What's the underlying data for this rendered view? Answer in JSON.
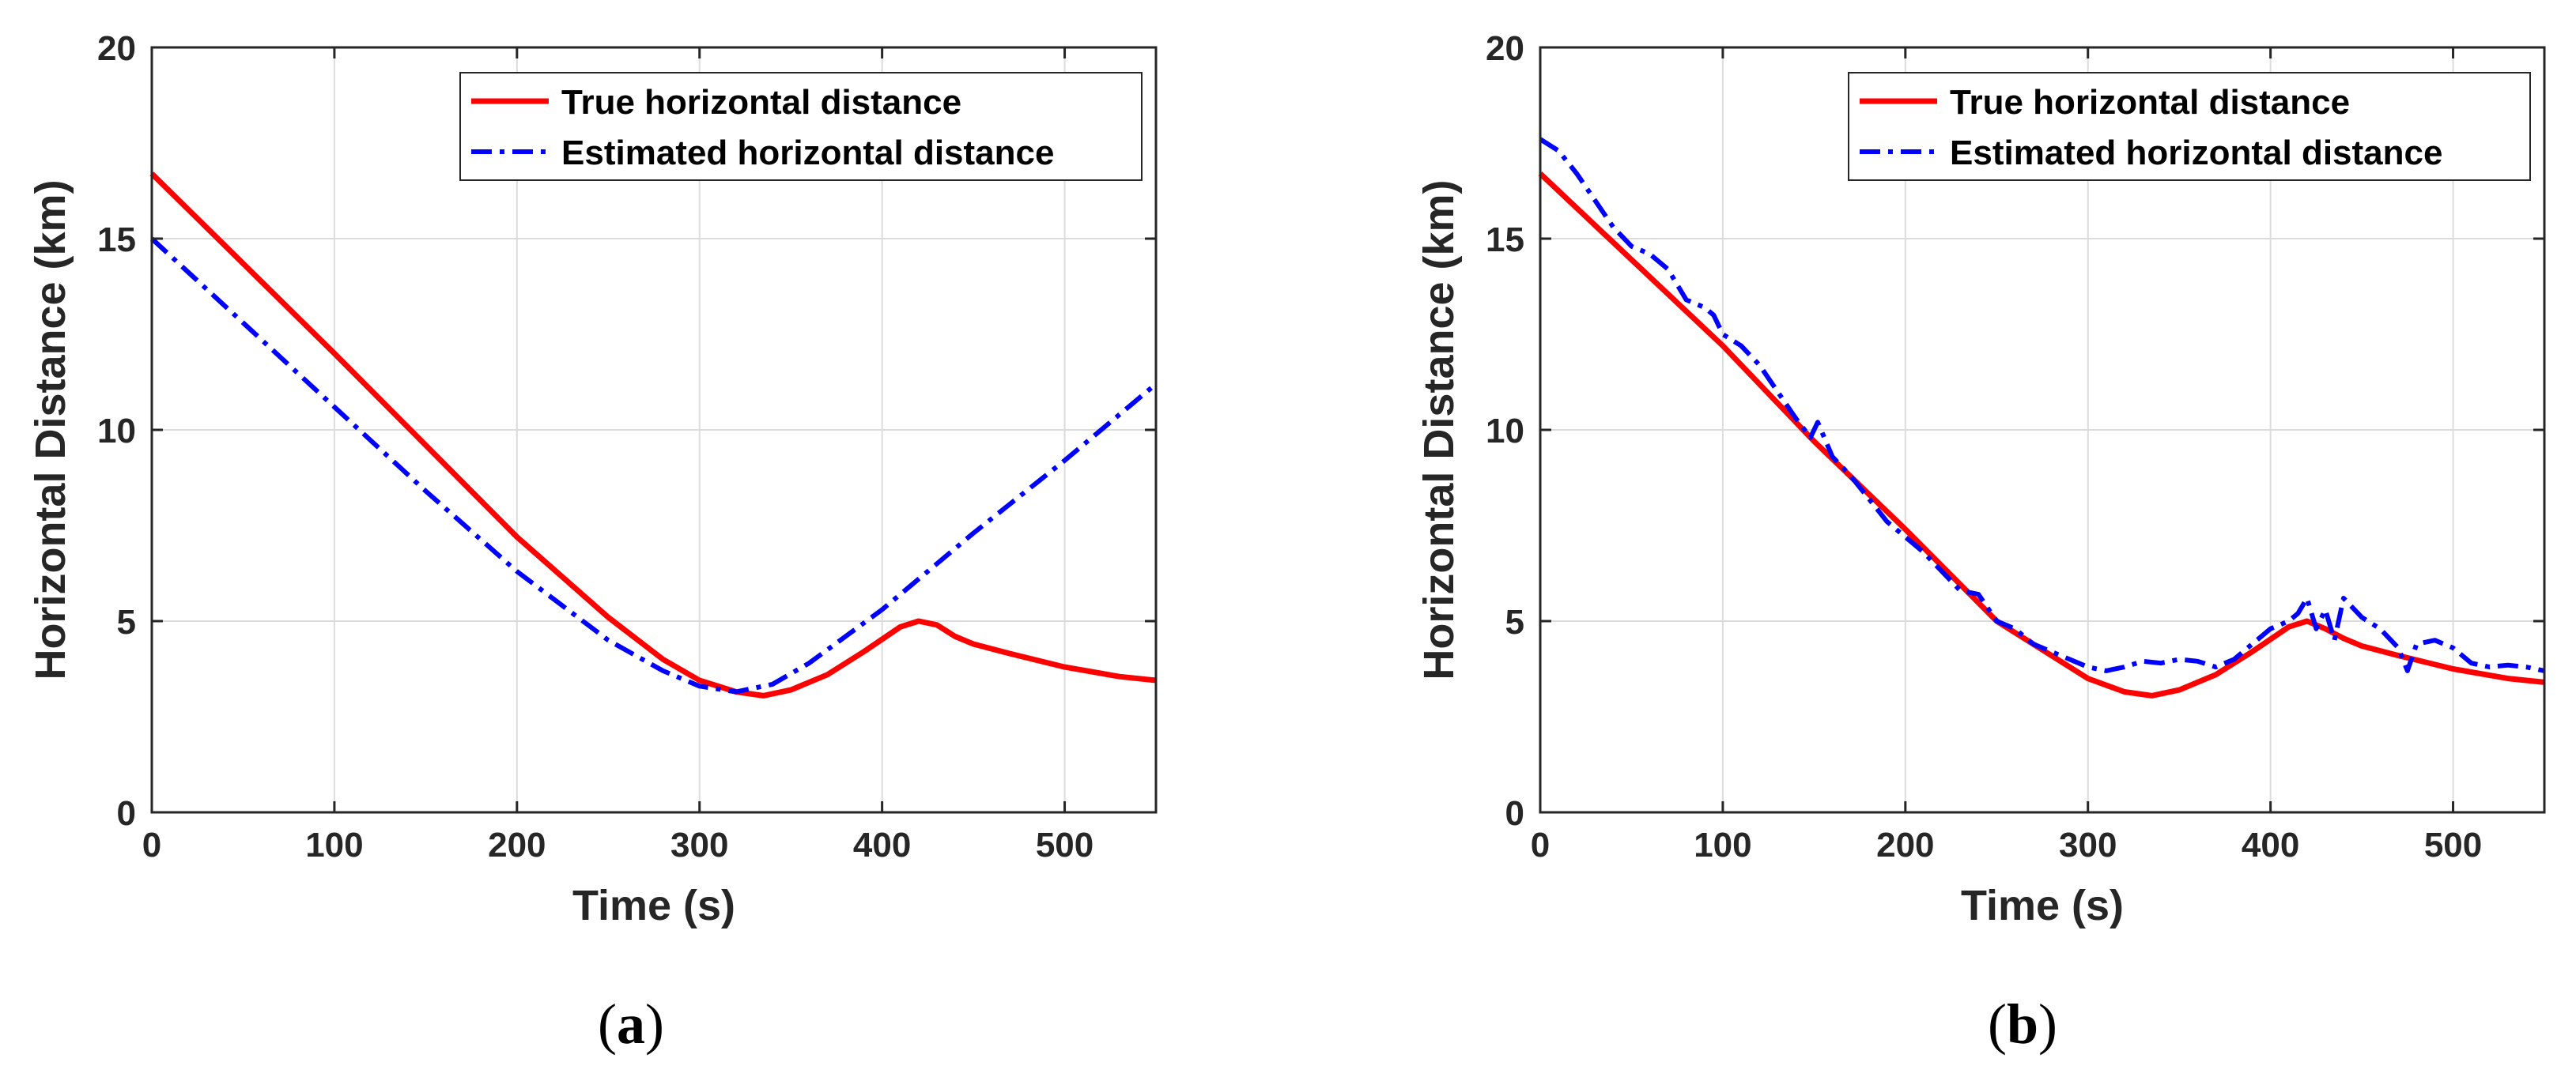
{
  "colors": {
    "true": "#ff0000",
    "estimated": "#0000ff",
    "grid": "#dcdcdc",
    "axis": "#262626"
  },
  "chart_data": [
    {
      "type": "line",
      "caption_open": "(",
      "caption_letter": "a",
      "caption_close": ")",
      "xlabel": "Time (s)",
      "ylabel": "Horizontal Distance (km)",
      "xlim": [
        0,
        550
      ],
      "ylim": [
        0,
        20
      ],
      "xticks": [
        0,
        100,
        200,
        300,
        400,
        500
      ],
      "yticks": [
        0,
        5,
        10,
        15,
        20
      ],
      "grid": true,
      "legend_position": "top-right",
      "series": [
        {
          "name": "True horizontal distance",
          "style": "solid",
          "x": [
            0,
            100,
            150,
            200,
            250,
            280,
            300,
            320,
            335,
            350,
            370,
            390,
            410,
            420,
            430,
            440,
            450,
            470,
            500,
            530,
            550
          ],
          "y": [
            16.7,
            12.0,
            9.6,
            7.2,
            5.1,
            4.0,
            3.45,
            3.15,
            3.05,
            3.2,
            3.6,
            4.2,
            4.85,
            5.0,
            4.9,
            4.6,
            4.4,
            4.15,
            3.8,
            3.55,
            3.45
          ]
        },
        {
          "name": "Estimated horizontal distance",
          "style": "dashdot",
          "x": [
            0,
            50,
            100,
            150,
            200,
            250,
            280,
            300,
            320,
            340,
            360,
            400,
            450,
            500,
            550
          ],
          "y": [
            15.0,
            12.8,
            10.6,
            8.4,
            6.3,
            4.5,
            3.7,
            3.3,
            3.15,
            3.35,
            3.9,
            5.3,
            7.3,
            9.2,
            11.2
          ]
        }
      ]
    },
    {
      "type": "line",
      "caption_open": "(",
      "caption_letter": "b",
      "caption_close": ")",
      "xlabel": "Time (s)",
      "ylabel": "Horizontal Distance (km)",
      "xlim": [
        0,
        550
      ],
      "ylim": [
        0,
        20
      ],
      "xticks": [
        0,
        100,
        200,
        300,
        400,
        500
      ],
      "yticks": [
        0,
        5,
        10,
        15,
        20
      ],
      "grid": true,
      "legend_position": "top-right",
      "series": [
        {
          "name": "True horizontal distance",
          "style": "solid",
          "x": [
            0,
            100,
            150,
            200,
            250,
            280,
            300,
            320,
            335,
            350,
            370,
            390,
            410,
            420,
            430,
            440,
            450,
            470,
            500,
            530,
            550
          ],
          "y": [
            16.7,
            12.2,
            9.7,
            7.4,
            5.0,
            4.1,
            3.5,
            3.15,
            3.05,
            3.2,
            3.6,
            4.2,
            4.85,
            5.0,
            4.8,
            4.55,
            4.35,
            4.1,
            3.75,
            3.5,
            3.4
          ]
        },
        {
          "name": "Estimated horizontal distance",
          "style": "dashdot",
          "x": [
            0,
            10,
            20,
            30,
            40,
            50,
            60,
            70,
            80,
            90,
            95,
            100,
            110,
            120,
            130,
            140,
            148,
            152,
            160,
            170,
            180,
            190,
            200,
            210,
            220,
            230,
            240,
            250,
            260,
            270,
            280,
            290,
            300,
            310,
            320,
            330,
            340,
            350,
            360,
            370,
            380,
            390,
            400,
            410,
            415,
            420,
            425,
            430,
            435,
            440,
            450,
            460,
            470,
            475,
            480,
            490,
            500,
            510,
            520,
            530,
            540,
            550
          ],
          "y": [
            17.6,
            17.3,
            16.7,
            16.0,
            15.3,
            14.8,
            14.6,
            14.2,
            13.4,
            13.2,
            13.0,
            12.5,
            12.2,
            11.7,
            11.0,
            10.3,
            9.8,
            10.2,
            9.3,
            8.8,
            8.2,
            7.6,
            7.2,
            6.8,
            6.3,
            5.8,
            5.7,
            5.0,
            4.8,
            4.4,
            4.2,
            4.0,
            3.8,
            3.7,
            3.8,
            3.95,
            3.9,
            4.0,
            3.95,
            3.8,
            4.0,
            4.4,
            4.8,
            5.0,
            5.2,
            5.6,
            4.8,
            5.3,
            4.5,
            5.6,
            5.1,
            4.8,
            4.3,
            3.7,
            4.4,
            4.5,
            4.3,
            3.9,
            3.8,
            3.85,
            3.8,
            3.7
          ]
        }
      ]
    }
  ]
}
